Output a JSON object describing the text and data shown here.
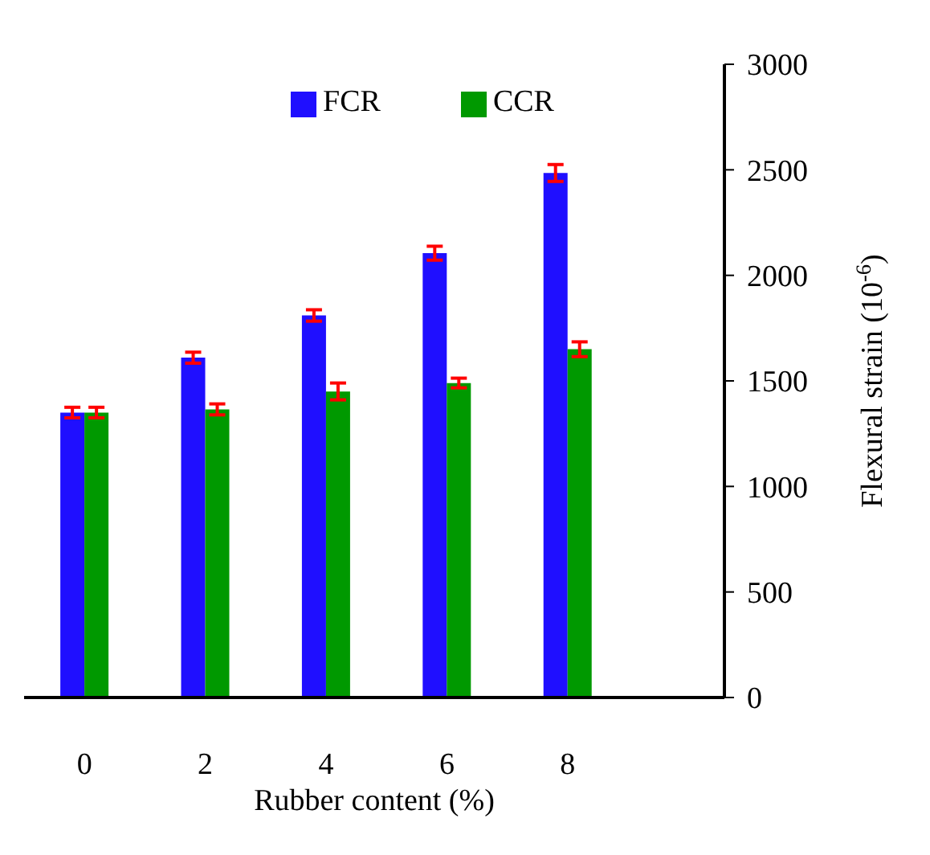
{
  "chart_data": {
    "type": "bar",
    "xlabel": "Rubber content (%)",
    "ylabel": "Flexural strain (10$^{-6}$)",
    "categories": [
      "0",
      "2",
      "4",
      "6",
      "8"
    ],
    "series": [
      {
        "name": "FCR",
        "color": "#1f0fff",
        "values": [
          1350,
          1610,
          1810,
          2105,
          2485
        ],
        "errors": [
          25,
          26,
          27,
          33,
          40
        ]
      },
      {
        "name": "CCR",
        "color": "#009900",
        "values": [
          1350,
          1365,
          1450,
          1490,
          1650
        ],
        "errors": [
          25,
          26,
          40,
          23,
          35
        ]
      }
    ],
    "ylim": [
      0,
      3000
    ],
    "yticks": [
      0,
      500,
      1000,
      1500,
      2000,
      2500,
      3000
    ],
    "grid": false,
    "legend": "top"
  }
}
